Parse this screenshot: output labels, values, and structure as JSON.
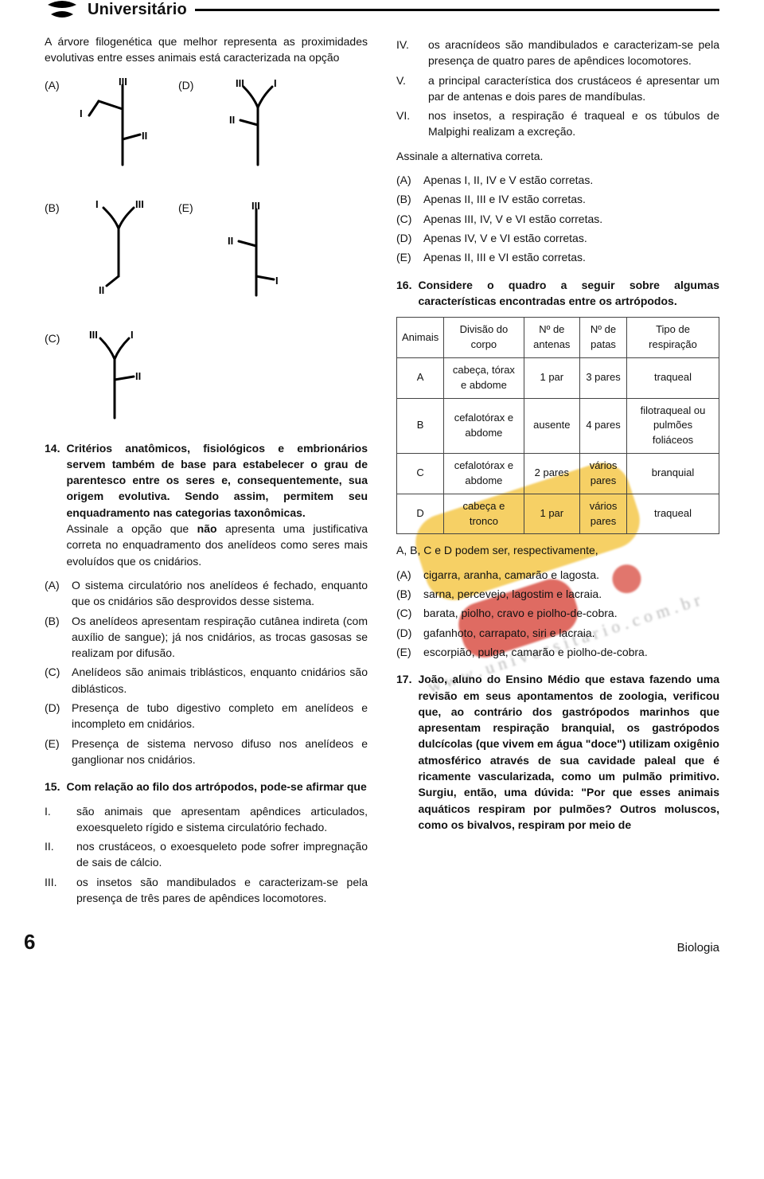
{
  "brand": "Universitário",
  "colors": {
    "ink": "#111111",
    "wm_yellow": "#f4c84a",
    "wm_red": "#d43a2f",
    "bg": "#ffffff"
  },
  "trees": {
    "A": {
      "labels": {
        "top": "III",
        "left": "I",
        "right_low": "II"
      }
    },
    "B": {
      "labels": {
        "tl": "I",
        "tr": "III",
        "bottom": "II"
      }
    },
    "C": {
      "labels": {
        "tl": "III",
        "tr": "I",
        "right_low": "II"
      }
    },
    "D": {
      "labels": {
        "tl": "III",
        "tr": "I",
        "left_low": "II"
      }
    },
    "E": {
      "labels": {
        "top": "III",
        "left_low": "II",
        "right_low": "I"
      }
    }
  },
  "left": {
    "intro": "A árvore filogenética que melhor representa as proximidades evolutivas entre esses animais está caracterizada na opção",
    "q14": {
      "num": "14.",
      "stem": "Critérios anatômicos, fisiológicos e embrionários servem também de base para estabelecer o grau de parentesco entre os seres e, consequentemente, sua origem evolutiva. Sendo assim, permitem seu enquadramento nas categorias taxonômicas.",
      "stem2": "Assinale a opção que não apresenta uma justificativa correta no enquadramento dos anelídeos como seres mais evoluídos que os cnidários.",
      "A": "O sistema circulatório nos anelídeos é fechado, enquanto que os cnidários são desprovidos desse sistema.",
      "B": "Os anelídeos apresentam respiração cutânea indireta (com auxílio de sangue); já nos cnidários, as trocas gasosas se realizam por difusão.",
      "C": "Anelídeos são animais triblásticos, enquanto cnidários são diblásticos.",
      "D": "Presença de tubo digestivo completo em anelídeos e incompleto em cnidários.",
      "E": "Presença de sistema nervoso difuso nos anelídeos e ganglionar nos cnidários."
    },
    "q15": {
      "num": "15.",
      "stem": "Com relação ao filo dos artrópodos, pode-se afirmar que",
      "I": "são animais que apresentam apêndices articulados, exoesqueleto rígido e sistema circulatório fechado.",
      "II": "nos crustáceos, o exoesqueleto pode sofrer impregnação de sais de cálcio.",
      "III": "os insetos são mandibulados e caracterizam-se pela presença de três pares de apêndices locomotores."
    }
  },
  "right": {
    "roman": {
      "IV": "os aracnídeos são mandibulados e caracterizam-se pela presença de quatro pares de apêndices locomotores.",
      "V": "a principal característica dos crustáceos é apresentar um par de antenas e dois pares de mandíbulas.",
      "VI": "nos insetos, a respiração é traqueal e os túbulos de Malpighi realizam a excreção."
    },
    "assinale": "Assinale a alternativa correta.",
    "alts": {
      "A": "Apenas I, II, IV e V estão corretas.",
      "B": "Apenas II, III e IV estão corretas.",
      "C": "Apenas III, IV, V e VI estão corretas.",
      "D": "Apenas IV, V e VI estão corretas.",
      "E": "Apenas II, III e VI estão corretas."
    },
    "q16": {
      "num": "16.",
      "stem": "Considere o quadro a seguir sobre algumas características encontradas entre os artrópodos.",
      "table": {
        "headers": [
          "Animais",
          "Divisão do corpo",
          "Nº de antenas",
          "Nº de patas",
          "Tipo de respiração"
        ],
        "rows": [
          [
            "A",
            "cabeça, tórax e abdome",
            "1 par",
            "3 pares",
            "traqueal"
          ],
          [
            "B",
            "cefalotórax e abdome",
            "ausente",
            "4 pares",
            "filotraqueal ou pulmões foliáceos"
          ],
          [
            "C",
            "cefalotórax e abdome",
            "2 pares",
            "vários pares",
            "branquial"
          ],
          [
            "D",
            "cabeça e tronco",
            "1 par",
            "vários pares",
            "traqueal"
          ]
        ]
      },
      "line": "A, B, C e D podem ser, respectivamente,",
      "A": "cigarra, aranha, camarão e lagosta.",
      "B": "sarna, percevejo, lagostim e lacraia.",
      "C": "barata, piolho, cravo e piolho-de-cobra.",
      "D": "gafanhoto, carrapato, siri e lacraia.",
      "E": "escorpião, pulga, camarão e piolho-de-cobra."
    },
    "q17": {
      "num": "17.",
      "stem": "João, aluno do Ensino Médio que estava fazendo uma revisão em seus apontamentos de zoologia, verificou que, ao contrário dos gastrópodos marinhos que apresentam respiração branquial, os gastrópodos dulcícolas (que vivem em água \"doce\") utilizam oxigênio atmosférico através de sua cavidade paleal que é ricamente vascularizada, como um pulmão primitivo. Surgiu, então, uma dúvida: \"Por que esses animais aquáticos respiram por pulmões? Outros moluscos, como os bivalvos, respiram por meio de"
    }
  },
  "footer": {
    "page": "6",
    "subject": "Biologia"
  }
}
